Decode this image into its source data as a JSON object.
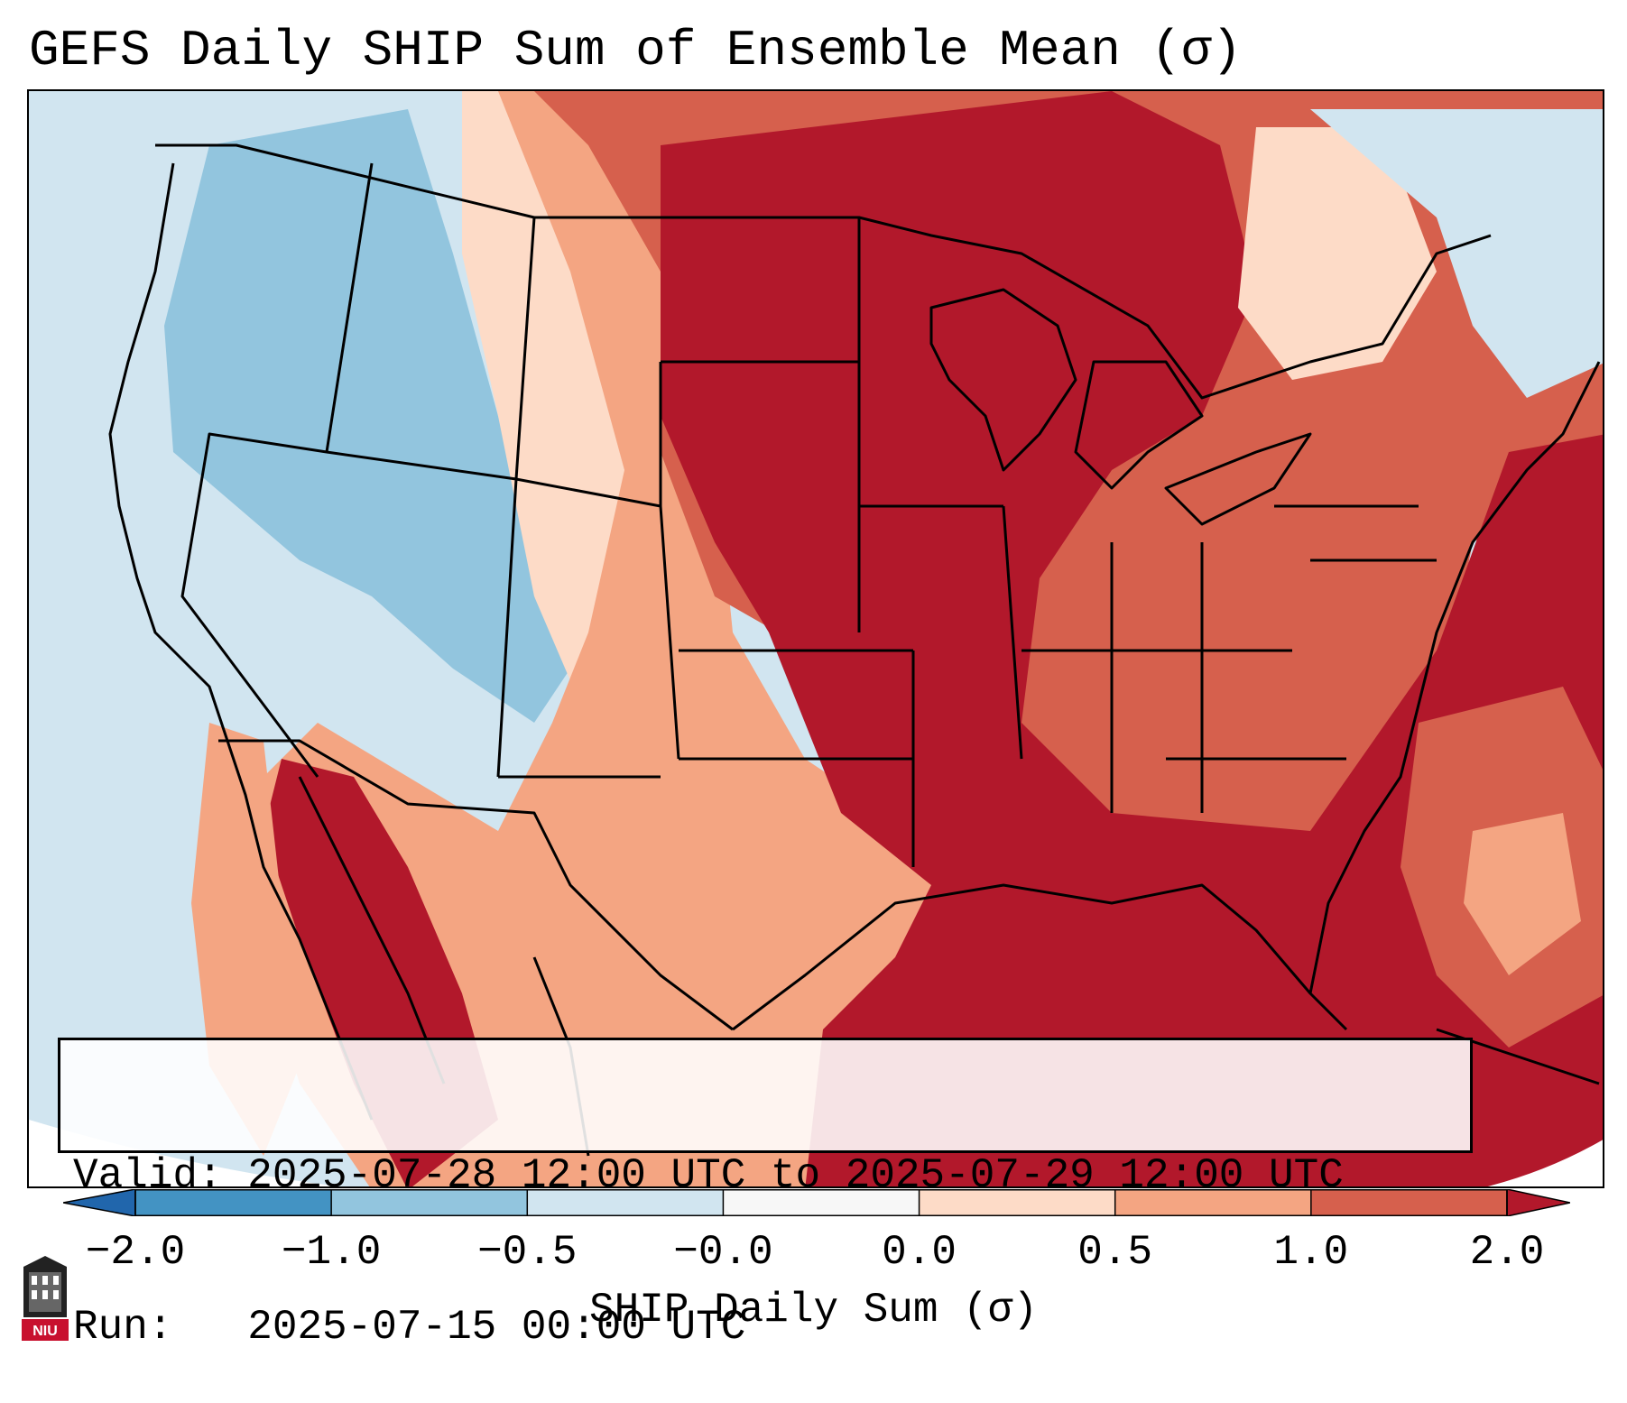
{
  "title": "GEFS Daily SHIP Sum of Ensemble Mean (σ)",
  "info": {
    "valid_line": "Valid: 2025-07-28 12:00 UTC to 2025-07-29 12:00 UTC",
    "run_line": "Run:   2025-07-15 00:00 UTC"
  },
  "colorbar": {
    "label": "SHIP Daily Sum (σ)",
    "ticks": [
      "−2.0",
      "−1.0",
      "−0.5",
      "−0.0",
      "0.0",
      "0.5",
      "1.0",
      "2.0"
    ],
    "colors": [
      "#4393c3",
      "#92c5de",
      "#d1e5f0",
      "#f7f7f7",
      "#fddbc7",
      "#f4a582",
      "#d6604d",
      "#b2182b"
    ],
    "extend_low": "#2166ac",
    "extend_high": "#b2182b"
  },
  "logo": {
    "text": "NIU"
  }
}
